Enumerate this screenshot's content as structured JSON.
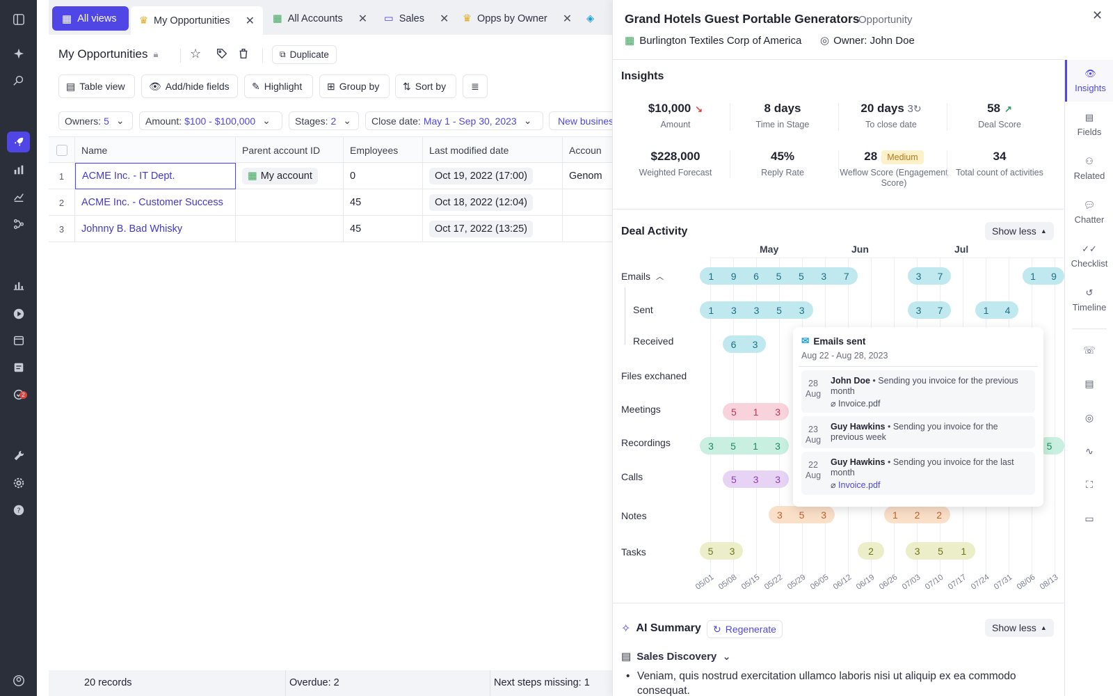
{
  "tabs": {
    "all_views": "All views",
    "items": [
      {
        "label": "My Opportunities",
        "icon": "crown-icon"
      },
      {
        "label": "All Accounts",
        "icon": "building-icon"
      },
      {
        "label": "Sales",
        "icon": "id-card-icon"
      },
      {
        "label": "Opps by Owner",
        "icon": "crown-icon"
      }
    ]
  },
  "view": {
    "title": "My Opportunities",
    "duplicate": "Duplicate",
    "toolbar": {
      "table_view": "Table view",
      "add_hide_fields": "Add/hide fields",
      "highlight": "Highlight",
      "group_by": "Group by",
      "sort_by": "Sort by"
    },
    "filters": [
      {
        "label": "Owners:",
        "value": "5"
      },
      {
        "label": "Amount:",
        "value": "$100 - $100,000"
      },
      {
        "label": "Stages:",
        "value": "2"
      },
      {
        "label": "Close date:",
        "value": "May 1 - Sep 30, 2023"
      },
      {
        "label": "",
        "value": "New busines"
      }
    ]
  },
  "table": {
    "columns": [
      "Name",
      "Parent account ID",
      "Employees",
      "Last modified date",
      "Accoun"
    ],
    "rows": [
      {
        "num": "1",
        "name": "ACME Inc. - IT Dept.",
        "parent": "My account",
        "employees": "0",
        "modified": "Oct 19, 2022 (17:00)",
        "account": "Genom"
      },
      {
        "num": "2",
        "name": "ACME Inc. - Customer Success",
        "parent": "",
        "employees": "45",
        "modified": "Oct 18, 2022 (12:04)",
        "account": ""
      },
      {
        "num": "3",
        "name": "Johnny B. Bad Whisky",
        "parent": "",
        "employees": "45",
        "modified": "Oct 17, 2022 (13:25)",
        "account": ""
      }
    ]
  },
  "footer": {
    "records": "20 records",
    "overdue": "Overdue: 2",
    "next_steps": "Next steps missing: 1"
  },
  "panel": {
    "title": "Grand Hotels Guest Portable Generators",
    "type": "Opportunity",
    "account": "Burlington Textiles Corp of America",
    "owner": "Owner: John Doe",
    "insights_title": "Insights",
    "kpis": [
      {
        "value": "$10,000",
        "label": "Amount",
        "trend": "down"
      },
      {
        "value": "8 days",
        "label": "Time in Stage"
      },
      {
        "value": "20 days",
        "extra": "3",
        "label": "To close date"
      },
      {
        "value": "58",
        "label": "Deal Score",
        "trend": "up"
      },
      {
        "value": "$228,000",
        "label": "Weighted Forecast"
      },
      {
        "value": "45%",
        "label": "Reply Rate"
      },
      {
        "value": "28",
        "badge": "Medium",
        "label": "Weflow Score (Engagement Score)"
      },
      {
        "value": "34",
        "label": "Total count of activities"
      }
    ],
    "deal_activity_title": "Deal Activity",
    "show_less": "Show less",
    "months": [
      "May",
      "Jun",
      "Jul"
    ],
    "activity_labels": {
      "emails": "Emails",
      "sent": "Sent",
      "received": "Received",
      "files": "Files exchaned",
      "meetings": "Meetings",
      "recordings": "Recordings",
      "calls": "Calls",
      "notes": "Notes",
      "tasks": "Tasks"
    },
    "activity_rows": {
      "emails": [
        [
          "1",
          "9",
          "6",
          "5",
          "5",
          "3",
          "7"
        ],
        [
          "3",
          "7"
        ],
        [
          "1",
          "9"
        ]
      ],
      "sent": [
        [
          "1",
          "3",
          "3",
          "5",
          "3"
        ],
        [
          "3",
          "7"
        ],
        [
          "1",
          "4"
        ]
      ],
      "received": [
        [
          "6",
          "3"
        ]
      ],
      "meetings": [
        [
          "5",
          "1",
          "3"
        ]
      ],
      "recordings": [
        [
          "3",
          "5",
          "1",
          "3"
        ],
        [
          "5"
        ]
      ],
      "calls": [
        [
          "5",
          "3",
          "3"
        ]
      ],
      "notes": [
        [
          "3",
          "5",
          "3"
        ],
        [
          "1",
          "2",
          "2"
        ]
      ],
      "tasks": [
        [
          "5",
          "3"
        ],
        [
          "2"
        ],
        [
          "3",
          "5",
          "1"
        ]
      ]
    },
    "dates": [
      "05/01",
      "05/08",
      "05/15",
      "05/22",
      "05/29",
      "06/05",
      "06/12",
      "06/19",
      "06/26",
      "07/03",
      "07/10",
      "07/17",
      "07/24",
      "07/31",
      "08/06",
      "08/13"
    ],
    "popup": {
      "title": "Emails sent",
      "range": "Aug 22 - Aug 28, 2023",
      "items": [
        {
          "day": "28",
          "month": "Aug",
          "author": "John Doe",
          "text": " • Sending you invoice for the previous month",
          "attachment": "Invoice.pdf"
        },
        {
          "day": "23",
          "month": "Aug",
          "author": "Guy Hawkins",
          "text": " • Sending you invoice for the previous week",
          "attachment": ""
        },
        {
          "day": "22",
          "month": "Aug",
          "author": "Guy Hawkins",
          "text": " • Sending you invoice for the last month",
          "attachment": "Invoice.pdf"
        }
      ]
    },
    "ai_title": "AI Summary",
    "regenerate": "Regenerate",
    "sales_discovery": "Sales Discovery",
    "summary_text": "Veniam, quis nostrud exercitation ullamco laboris nisi ut aliquip ex ea commodo consequat."
  },
  "right_tabs": [
    "Insights",
    "Fields",
    "Related",
    "Chatter",
    "Checklist",
    "Timeline"
  ],
  "colors": {
    "accent": "#4f46e5",
    "emails": "#bfe8ef",
    "meetings": "#f8d3dc",
    "recordings": "#c8efdf",
    "calls": "#e7d3f3",
    "notes": "#fbe0c9",
    "tasks": "#ebeec8"
  }
}
